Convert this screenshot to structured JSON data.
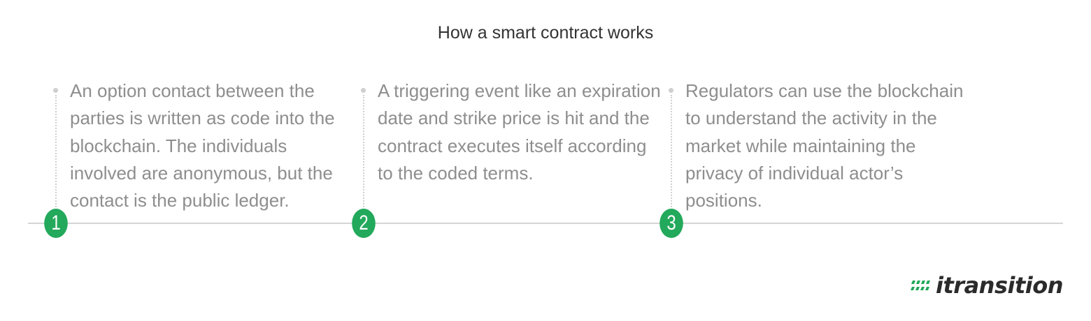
{
  "title": "How a smart contract works",
  "steps": [
    {
      "number": "1",
      "text": "An option contact between the parties is written as code into the blockchain. The individuals involved are anonymous, but the contact is the public ledger."
    },
    {
      "number": "2",
      "text": "A triggering event like an expiration date and strike price is hit and the contract executes itself according to the coded terms."
    },
    {
      "number": "3",
      "text": "Regulators can use the blockchain to understand the activity in the market while maintaining the privacy of individual actor’s positions."
    }
  ],
  "logo": {
    "wordmark": "itransition",
    "icon": "slanted-bars-icon"
  },
  "colors": {
    "accent": "#22a95b",
    "text": "#8e8e8e",
    "title": "#333333",
    "line": "#d5d5d5"
  }
}
